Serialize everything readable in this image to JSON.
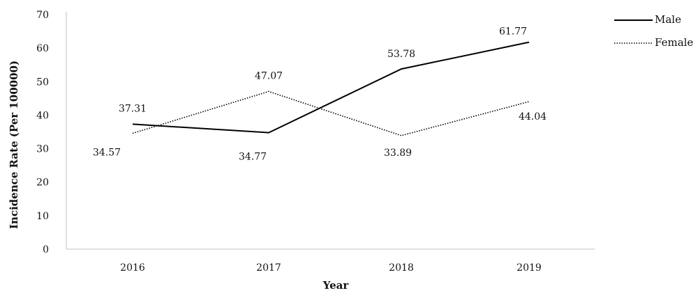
{
  "chart_data": {
    "type": "line",
    "title": "",
    "xlabel": "Year",
    "ylabel": "Incidence Rate (Per 100000)",
    "categories": [
      "2016",
      "2017",
      "2018",
      "2019"
    ],
    "ylim": [
      0,
      70
    ],
    "yticks": [
      "0",
      "10",
      "20",
      "30",
      "40",
      "50",
      "60",
      "70"
    ],
    "grid": false,
    "legend_position": "top-right",
    "series": [
      {
        "name": "Male",
        "values": [
          37.31,
          34.77,
          53.78,
          61.77
        ],
        "labels": [
          "37.31",
          "34.77",
          "53.78",
          "61.77"
        ],
        "style": "solid",
        "color": "#000000"
      },
      {
        "name": "Female",
        "values": [
          34.57,
          47.07,
          33.89,
          44.04
        ],
        "labels": [
          "34.57",
          "47.07",
          "33.89",
          "44.04"
        ],
        "style": "dotted",
        "color": "#000000"
      }
    ]
  }
}
